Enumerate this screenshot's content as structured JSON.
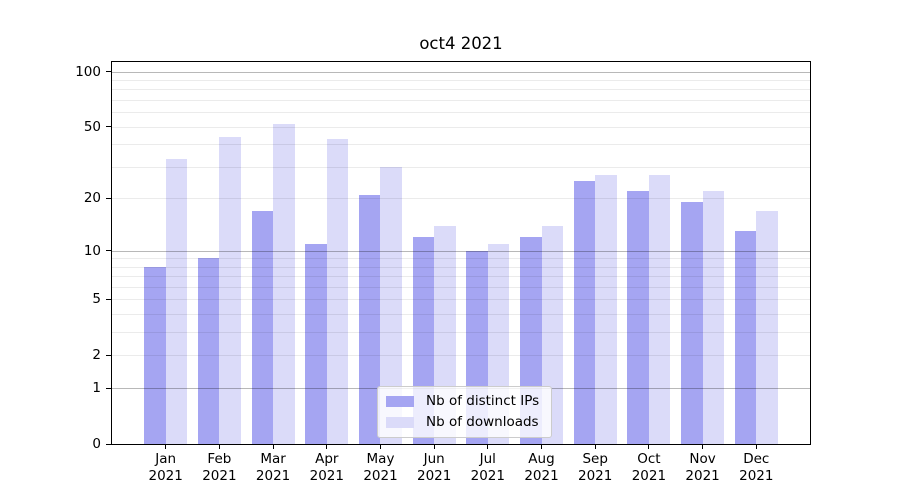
{
  "title": "oct4 2021",
  "chart_data": {
    "type": "bar",
    "title": "oct4 2021",
    "categories": [
      "Jan",
      "Feb",
      "Mar",
      "Apr",
      "May",
      "Jun",
      "Jul",
      "Aug",
      "Sep",
      "Oct",
      "Nov",
      "Dec"
    ],
    "x_tick_year": "2021",
    "series": [
      {
        "name": "Nb of distinct IPs",
        "color": "#a5a5f2",
        "values": [
          8,
          9,
          17,
          11,
          21,
          12,
          10,
          12,
          25,
          22,
          19,
          13
        ]
      },
      {
        "name": "Nb of downloads",
        "color": "#dbdbf9",
        "values": [
          33,
          44,
          52,
          43,
          30,
          14,
          11,
          14,
          27,
          27,
          22,
          17
        ]
      }
    ],
    "y_scale": "log1p",
    "ylim": [
      0,
      112
    ],
    "y_ticks": [
      0,
      1,
      2,
      5,
      10,
      20,
      50,
      100
    ],
    "y_gridlines_major": [
      1,
      10,
      100
    ],
    "y_gridlines_minor": [
      2,
      3,
      4,
      5,
      6,
      7,
      8,
      9,
      20,
      30,
      40,
      50,
      60,
      70,
      80,
      90
    ],
    "grid": true,
    "legend": {
      "position": "lower center",
      "entries": [
        "Nb of distinct IPs",
        "Nb of downloads"
      ]
    }
  },
  "colors": {
    "grid_minor": "rgba(0,0,0,0.08)",
    "grid_major": "rgba(0,0,0,0.28)",
    "spine": "#000000",
    "background": "#ffffff"
  }
}
